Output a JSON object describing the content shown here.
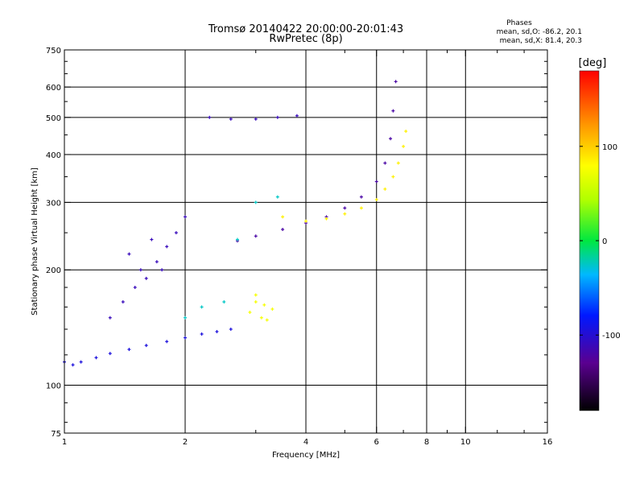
{
  "chart_data": {
    "type": "scatter",
    "title": "Tromsø 20140422 20:00:00-20:01:43",
    "subtitle": "RwPretec (8p)",
    "xlabel": "Frequency [MHz]",
    "ylabel": "Stationary phase Virtual Height [km]",
    "x_scale": "log",
    "y_scale": "log",
    "xlim": [
      1,
      16
    ],
    "ylim": [
      75,
      750
    ],
    "x_ticks": [
      1,
      2,
      4,
      6,
      8,
      10,
      16
    ],
    "x_tick_labels": [
      "1",
      "2",
      "4",
      "6",
      "8",
      "10",
      "16"
    ],
    "y_ticks": [
      75,
      100,
      200,
      300,
      400,
      500,
      600,
      750
    ],
    "y_tick_labels": [
      "75",
      "100",
      "200",
      "300",
      "400",
      "500",
      "600",
      "750"
    ],
    "grid": true,
    "phases_box": {
      "heading": "Phases",
      "line_o": "mean, sd,O: -86.2, 20.1",
      "line_x": "mean, sd,X: 81.4, 20.3"
    },
    "colorbar": {
      "label": "[deg]",
      "range": [
        -180,
        180
      ],
      "tick_values": [
        100,
        0,
        -100
      ],
      "tick_labels": [
        "100",
        "0",
        "-100"
      ]
    },
    "series": [
      {
        "trace": "o-mode-lower-trace",
        "phase_deg": -95,
        "x": [
          1.0,
          1.05,
          1.1,
          1.2,
          1.3,
          1.45,
          1.6,
          1.8,
          2.0,
          2.2,
          2.4,
          2.6
        ],
        "y": [
          115,
          113,
          115,
          118,
          121,
          124,
          127,
          130,
          133,
          136,
          138,
          140
        ]
      },
      {
        "trace": "o-mode-spread-cluster",
        "phase_deg": -110,
        "x": [
          1.3,
          1.4,
          1.5,
          1.55,
          1.6,
          1.7,
          1.8,
          1.9,
          2.0,
          1.45,
          1.65,
          1.75
        ],
        "y": [
          150,
          165,
          180,
          200,
          190,
          210,
          230,
          250,
          275,
          220,
          240,
          200
        ]
      },
      {
        "trace": "o-mode-f2-trace",
        "phase_deg": -120,
        "x": [
          2.7,
          3.0,
          3.5,
          4.0,
          4.5,
          5.0,
          5.5,
          6.0,
          6.3,
          6.5,
          6.6,
          6.7
        ],
        "y": [
          238,
          245,
          255,
          265,
          275,
          290,
          310,
          340,
          380,
          440,
          520,
          620
        ]
      },
      {
        "trace": "x-mode-f2-trace",
        "phase_deg": 85,
        "x": [
          3.5,
          4.0,
          4.5,
          5.0,
          5.5,
          6.0,
          6.3,
          6.6,
          6.8,
          7.0,
          7.1
        ],
        "y": [
          275,
          268,
          272,
          280,
          290,
          305,
          325,
          350,
          380,
          420,
          460
        ]
      },
      {
        "trace": "x-mode-lower-cluster",
        "phase_deg": 75,
        "x": [
          2.9,
          3.0,
          3.1,
          3.2,
          3.3,
          3.0,
          3.15
        ],
        "y": [
          155,
          165,
          150,
          148,
          158,
          172,
          162
        ]
      },
      {
        "trace": "o-mode-sporadic-layer",
        "phase_deg": -110,
        "x": [
          2.3,
          2.6,
          3.0,
          3.4,
          3.8
        ],
        "y": [
          500,
          495,
          495,
          500,
          505
        ]
      },
      {
        "trace": "cyan-trace",
        "phase_deg": -25,
        "x": [
          2.0,
          2.2,
          2.5,
          2.7,
          3.0,
          3.4
        ],
        "y": [
          150,
          160,
          165,
          240,
          300,
          310
        ]
      }
    ]
  }
}
